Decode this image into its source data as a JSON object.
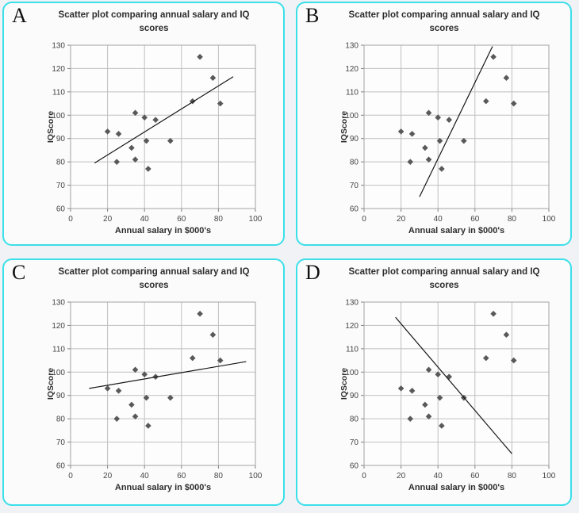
{
  "page": {
    "background_color": "#f1f2f6",
    "panel_background_color": "#fbfbfb",
    "panel_border_color": "#3bdfe9",
    "gridline_color": "#bfbfbf",
    "axis_color": "#a3a3a3",
    "trend_line_color": "#161616"
  },
  "chart_data": [
    {
      "panel_label": "A",
      "type": "scatter",
      "title": "Scatter plot comparing annual salary and IQ scores",
      "title_lines": [
        "Scatter plot comparing annual salary and IQ",
        "scores"
      ],
      "xlabel": "Annual salary in $000's",
      "ylabel": "IQScore",
      "xlim": [
        0,
        100
      ],
      "ylim": [
        60,
        130
      ],
      "xticks": [
        0,
        20,
        40,
        60,
        80,
        100
      ],
      "yticks": [
        60,
        70,
        80,
        90,
        100,
        110,
        120,
        130
      ],
      "grid": true,
      "legend": false,
      "marker": "diamond",
      "marker_color": "#59595b",
      "points": [
        [
          20,
          93
        ],
        [
          25,
          80
        ],
        [
          26,
          92
        ],
        [
          33,
          86
        ],
        [
          35,
          81
        ],
        [
          35,
          101
        ],
        [
          40,
          99
        ],
        [
          41,
          89
        ],
        [
          42,
          77
        ],
        [
          46,
          98
        ],
        [
          54,
          89
        ],
        [
          66,
          106
        ],
        [
          70,
          125
        ],
        [
          77,
          116
        ],
        [
          81,
          105
        ]
      ],
      "trend_line": {
        "x1": 13,
        "y1": 79.5,
        "x2": 88,
        "y2": 116.5
      }
    },
    {
      "panel_label": "B",
      "type": "scatter",
      "title": "Scatter plot comparing annual salary and IQ scores",
      "title_lines": [
        "Scatter plot comparing annual salary and IQ",
        "scores"
      ],
      "xlabel": "Annual salary in $000's",
      "ylabel": "IQScore",
      "xlim": [
        0,
        100
      ],
      "ylim": [
        60,
        130
      ],
      "xticks": [
        0,
        20,
        40,
        60,
        80,
        100
      ],
      "yticks": [
        60,
        70,
        80,
        90,
        100,
        110,
        120,
        130
      ],
      "grid": true,
      "legend": false,
      "marker": "diamond",
      "marker_color": "#59595b",
      "points": [
        [
          20,
          93
        ],
        [
          25,
          80
        ],
        [
          26,
          92
        ],
        [
          33,
          86
        ],
        [
          35,
          81
        ],
        [
          35,
          101
        ],
        [
          40,
          99
        ],
        [
          41,
          89
        ],
        [
          42,
          77
        ],
        [
          46,
          98
        ],
        [
          54,
          89
        ],
        [
          66,
          106
        ],
        [
          70,
          125
        ],
        [
          77,
          116
        ],
        [
          81,
          105
        ]
      ],
      "trend_line": {
        "x1": 30,
        "y1": 65,
        "x2": 69.5,
        "y2": 129.5
      }
    },
    {
      "panel_label": "C",
      "type": "scatter",
      "title": "Scatter plot comparing annual salary and IQ scores",
      "title_lines": [
        "Scatter plot comparing annual salary and IQ",
        "scores"
      ],
      "xlabel": "Annual salary in $000's",
      "ylabel": "IQScore",
      "xlim": [
        0,
        100
      ],
      "ylim": [
        60,
        130
      ],
      "xticks": [
        0,
        20,
        40,
        60,
        80,
        100
      ],
      "yticks": [
        60,
        70,
        80,
        90,
        100,
        110,
        120,
        130
      ],
      "grid": true,
      "legend": false,
      "marker": "diamond",
      "marker_color": "#59595b",
      "points": [
        [
          20,
          93
        ],
        [
          25,
          80
        ],
        [
          26,
          92
        ],
        [
          33,
          86
        ],
        [
          35,
          81
        ],
        [
          35,
          101
        ],
        [
          40,
          99
        ],
        [
          41,
          89
        ],
        [
          42,
          77
        ],
        [
          46,
          98
        ],
        [
          54,
          89
        ],
        [
          66,
          106
        ],
        [
          70,
          125
        ],
        [
          77,
          116
        ],
        [
          81,
          105
        ]
      ],
      "trend_line": {
        "x1": 10,
        "y1": 93,
        "x2": 95,
        "y2": 104.5
      }
    },
    {
      "panel_label": "D",
      "type": "scatter",
      "title": "Scatter plot comparing annual salary and IQ scores",
      "title_lines": [
        "Scatter plot comparing annual salary and IQ",
        "scores"
      ],
      "xlabel": "Annual salary in $000's",
      "ylabel": "IQScore",
      "xlim": [
        0,
        100
      ],
      "ylim": [
        60,
        130
      ],
      "xticks": [
        0,
        20,
        40,
        60,
        80,
        100
      ],
      "yticks": [
        60,
        70,
        80,
        90,
        100,
        110,
        120,
        130
      ],
      "grid": true,
      "legend": false,
      "marker": "diamond",
      "marker_color": "#59595b",
      "points": [
        [
          20,
          93
        ],
        [
          25,
          80
        ],
        [
          26,
          92
        ],
        [
          33,
          86
        ],
        [
          35,
          81
        ],
        [
          35,
          101
        ],
        [
          40,
          99
        ],
        [
          41,
          89
        ],
        [
          42,
          77
        ],
        [
          46,
          98
        ],
        [
          54,
          89
        ],
        [
          66,
          106
        ],
        [
          70,
          125
        ],
        [
          77,
          116
        ],
        [
          81,
          105
        ]
      ],
      "trend_line": {
        "x1": 17,
        "y1": 123.5,
        "x2": 80,
        "y2": 65
      }
    }
  ]
}
